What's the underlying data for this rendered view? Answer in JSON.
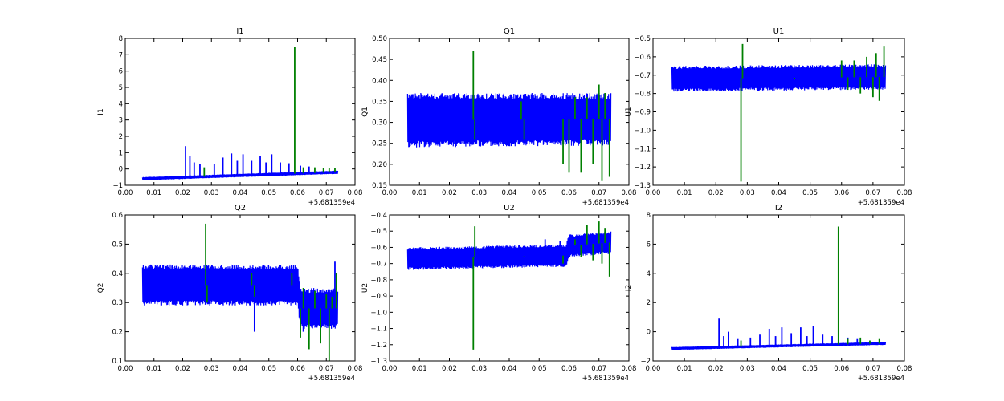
{
  "chart_data": [
    {
      "type": "line",
      "title": "I1",
      "ylabel": "I1",
      "xlim": [
        0.0,
        0.08
      ],
      "ylim": [
        -1,
        8
      ],
      "xticks": [
        "0.00",
        "0.01",
        "0.02",
        "0.03",
        "0.04",
        "0.05",
        "0.06",
        "0.07",
        "0.08"
      ],
      "yticks": [
        "−1",
        "0",
        "1",
        "2",
        "3",
        "4",
        "5",
        "6",
        "7",
        "8"
      ],
      "offset_label": "+5.681359e4",
      "series": [
        {
          "color": "#0000ff",
          "band_lo": [
            [
              0.006,
              -0.7
            ],
            [
              0.074,
              -0.3
            ]
          ],
          "band_hi": [
            [
              0.006,
              -0.5
            ],
            [
              0.074,
              -0.1
            ]
          ],
          "spikes": [
            [
              0.021,
              1.4
            ],
            [
              0.0225,
              0.8
            ],
            [
              0.024,
              0.4
            ],
            [
              0.026,
              0.3
            ],
            [
              0.031,
              0.3
            ],
            [
              0.034,
              0.7
            ],
            [
              0.037,
              0.95
            ],
            [
              0.039,
              0.5
            ],
            [
              0.041,
              0.9
            ],
            [
              0.044,
              0.5
            ],
            [
              0.047,
              0.8
            ],
            [
              0.049,
              0.4
            ],
            [
              0.051,
              0.9
            ],
            [
              0.054,
              0.4
            ],
            [
              0.057,
              0.35
            ],
            [
              0.061,
              0.2
            ],
            [
              0.064,
              0.15
            ]
          ]
        },
        {
          "color": "#008000",
          "spikes": [
            [
              0.0275,
              0.1
            ],
            [
              0.059,
              7.5
            ],
            [
              0.062,
              0.1
            ],
            [
              0.066,
              0.1
            ],
            [
              0.069,
              0.05
            ],
            [
              0.071,
              0.05
            ],
            [
              0.073,
              0.05
            ]
          ]
        }
      ]
    },
    {
      "type": "line",
      "title": "Q1",
      "ylabel": "Q1",
      "xlim": [
        0.0,
        0.08
      ],
      "ylim": [
        0.15,
        0.5
      ],
      "xticks": [
        "0.00",
        "0.01",
        "0.02",
        "0.03",
        "0.04",
        "0.05",
        "0.06",
        "0.07",
        "0.08"
      ],
      "yticks": [
        "0.15",
        "0.20",
        "0.25",
        "0.30",
        "0.35",
        "0.40",
        "0.45",
        "0.50"
      ],
      "offset_label": "+5.681359e4",
      "series": [
        {
          "color": "#0000ff",
          "band_lo": [
            [
              0.006,
              0.24
            ],
            [
              0.074,
              0.245
            ]
          ],
          "band_hi": [
            [
              0.006,
              0.37
            ],
            [
              0.074,
              0.37
            ]
          ],
          "spikes": []
        },
        {
          "color": "#008000",
          "spikes": [
            [
              0.028,
              0.47
            ],
            [
              0.0285,
              0.26
            ],
            [
              0.044,
              0.35
            ],
            [
              0.045,
              0.26
            ],
            [
              0.058,
              0.2
            ],
            [
              0.06,
              0.18
            ],
            [
              0.062,
              0.36
            ],
            [
              0.064,
              0.18
            ],
            [
              0.066,
              0.36
            ],
            [
              0.068,
              0.2
            ],
            [
              0.07,
              0.39
            ],
            [
              0.071,
              0.16
            ],
            [
              0.072,
              0.37
            ],
            [
              0.0735,
              0.17
            ]
          ]
        }
      ]
    },
    {
      "type": "line",
      "title": "U1",
      "ylabel": "U1",
      "xlim": [
        0.0,
        0.08
      ],
      "ylim": [
        -1.3,
        -0.5
      ],
      "xticks": [
        "0.00",
        "0.01",
        "0.02",
        "0.03",
        "0.04",
        "0.05",
        "0.06",
        "0.07",
        "0.08"
      ],
      "yticks": [
        "−1.3",
        "−1.2",
        "−1.1",
        "−1.0",
        "−0.9",
        "−0.8",
        "−0.7",
        "−0.6",
        "−0.5"
      ],
      "offset_label": "+5.681359e4",
      "series": [
        {
          "color": "#0000ff",
          "band_lo": [
            [
              0.006,
              -0.79
            ],
            [
              0.074,
              -0.78
            ]
          ],
          "band_hi": [
            [
              0.006,
              -0.65
            ],
            [
              0.074,
              -0.64
            ]
          ],
          "spikes": []
        },
        {
          "color": "#008000",
          "spikes": [
            [
              0.028,
              -1.28
            ],
            [
              0.0285,
              -0.53
            ],
            [
              0.045,
              -0.72
            ],
            [
              0.06,
              -0.62
            ],
            [
              0.062,
              -0.78
            ],
            [
              0.064,
              -0.62
            ],
            [
              0.066,
              -0.8
            ],
            [
              0.068,
              -0.6
            ],
            [
              0.07,
              -0.82
            ],
            [
              0.071,
              -0.58
            ],
            [
              0.072,
              -0.84
            ],
            [
              0.0735,
              -0.54
            ]
          ]
        }
      ]
    },
    {
      "type": "line",
      "title": "Q2",
      "ylabel": "Q2",
      "xlim": [
        0.0,
        0.08
      ],
      "ylim": [
        0.1,
        0.6
      ],
      "xticks": [
        "0.00",
        "0.01",
        "0.02",
        "0.03",
        "0.04",
        "0.05",
        "0.06",
        "0.07",
        "0.08"
      ],
      "yticks": [
        "0.1",
        "0.2",
        "0.3",
        "0.4",
        "0.5",
        "0.6"
      ],
      "offset_label": "+5.681359e4",
      "series": [
        {
          "color": "#0000ff",
          "band_lo": [
            [
              0.006,
              0.29
            ],
            [
              0.06,
              0.29
            ],
            [
              0.061,
              0.21
            ],
            [
              0.074,
              0.21
            ]
          ],
          "band_hi": [
            [
              0.006,
              0.43
            ],
            [
              0.06,
              0.43
            ],
            [
              0.061,
              0.35
            ],
            [
              0.074,
              0.35
            ]
          ],
          "spikes": [
            [
              0.045,
              0.2
            ],
            [
              0.062,
              0.2
            ],
            [
              0.073,
              0.44
            ]
          ]
        },
        {
          "color": "#008000",
          "spikes": [
            [
              0.028,
              0.57
            ],
            [
              0.0285,
              0.3
            ],
            [
              0.044,
              0.4
            ],
            [
              0.045,
              0.32
            ],
            [
              0.058,
              0.4
            ],
            [
              0.061,
              0.18
            ],
            [
              0.062,
              0.35
            ],
            [
              0.064,
              0.14
            ],
            [
              0.066,
              0.34
            ],
            [
              0.068,
              0.16
            ],
            [
              0.07,
              0.33
            ],
            [
              0.071,
              0.1
            ],
            [
              0.072,
              0.32
            ],
            [
              0.0735,
              0.4
            ]
          ]
        }
      ]
    },
    {
      "type": "line",
      "title": "U2",
      "ylabel": "U2",
      "xlim": [
        0.0,
        0.08
      ],
      "ylim": [
        -1.3,
        -0.4
      ],
      "xticks": [
        "0.00",
        "0.01",
        "0.02",
        "0.03",
        "0.04",
        "0.05",
        "0.06",
        "0.07",
        "0.08"
      ],
      "yticks": [
        "−1.3",
        "−1.2",
        "−1.1",
        "−1.0",
        "−0.9",
        "−0.8",
        "−0.7",
        "−0.6",
        "−0.5",
        "−0.4"
      ],
      "offset_label": "+5.681359e4",
      "series": [
        {
          "color": "#0000ff",
          "band_lo": [
            [
              0.006,
              -0.74
            ],
            [
              0.059,
              -0.72
            ],
            [
              0.06,
              -0.66
            ],
            [
              0.074,
              -0.64
            ]
          ],
          "band_hi": [
            [
              0.006,
              -0.6
            ],
            [
              0.059,
              -0.58
            ],
            [
              0.06,
              -0.52
            ],
            [
              0.074,
              -0.5
            ]
          ],
          "spikes": [
            [
              0.052,
              -0.55
            ],
            [
              0.057,
              -0.56
            ]
          ]
        },
        {
          "color": "#008000",
          "spikes": [
            [
              0.028,
              -1.23
            ],
            [
              0.0285,
              -0.47
            ],
            [
              0.045,
              -0.66
            ],
            [
              0.058,
              -0.7
            ],
            [
              0.062,
              -0.55
            ],
            [
              0.064,
              -0.66
            ],
            [
              0.066,
              -0.46
            ],
            [
              0.068,
              -0.68
            ],
            [
              0.07,
              -0.44
            ],
            [
              0.071,
              -0.7
            ],
            [
              0.072,
              -0.48
            ],
            [
              0.0735,
              -0.78
            ]
          ]
        }
      ]
    },
    {
      "type": "line",
      "title": "I2",
      "ylabel": "I2",
      "xlim": [
        0.0,
        0.08
      ],
      "ylim": [
        -2,
        8
      ],
      "xticks": [
        "0.00",
        "0.01",
        "0.02",
        "0.03",
        "0.04",
        "0.05",
        "0.06",
        "0.07",
        "0.08"
      ],
      "yticks": [
        "−2",
        "0",
        "2",
        "4",
        "6",
        "8"
      ],
      "offset_label": "+5.681359e4",
      "series": [
        {
          "color": "#0000ff",
          "band_lo": [
            [
              0.006,
              -1.25
            ],
            [
              0.074,
              -0.9
            ]
          ],
          "band_hi": [
            [
              0.006,
              -1.05
            ],
            [
              0.074,
              -0.7
            ]
          ],
          "spikes": [
            [
              0.021,
              0.9
            ],
            [
              0.0225,
              -0.3
            ],
            [
              0.024,
              0.0
            ],
            [
              0.027,
              -0.5
            ],
            [
              0.031,
              -0.4
            ],
            [
              0.034,
              -0.2
            ],
            [
              0.037,
              0.2
            ],
            [
              0.039,
              -0.3
            ],
            [
              0.041,
              0.3
            ],
            [
              0.044,
              -0.1
            ],
            [
              0.047,
              0.3
            ],
            [
              0.049,
              -0.3
            ],
            [
              0.051,
              0.4
            ],
            [
              0.054,
              -0.2
            ],
            [
              0.057,
              -0.3
            ],
            [
              0.062,
              -0.4
            ],
            [
              0.065,
              -0.5
            ]
          ]
        },
        {
          "color": "#008000",
          "spikes": [
            [
              0.028,
              -0.6
            ],
            [
              0.059,
              7.2
            ],
            [
              0.062,
              -0.5
            ],
            [
              0.066,
              -0.4
            ],
            [
              0.069,
              -0.6
            ],
            [
              0.072,
              -0.5
            ]
          ]
        }
      ]
    }
  ]
}
